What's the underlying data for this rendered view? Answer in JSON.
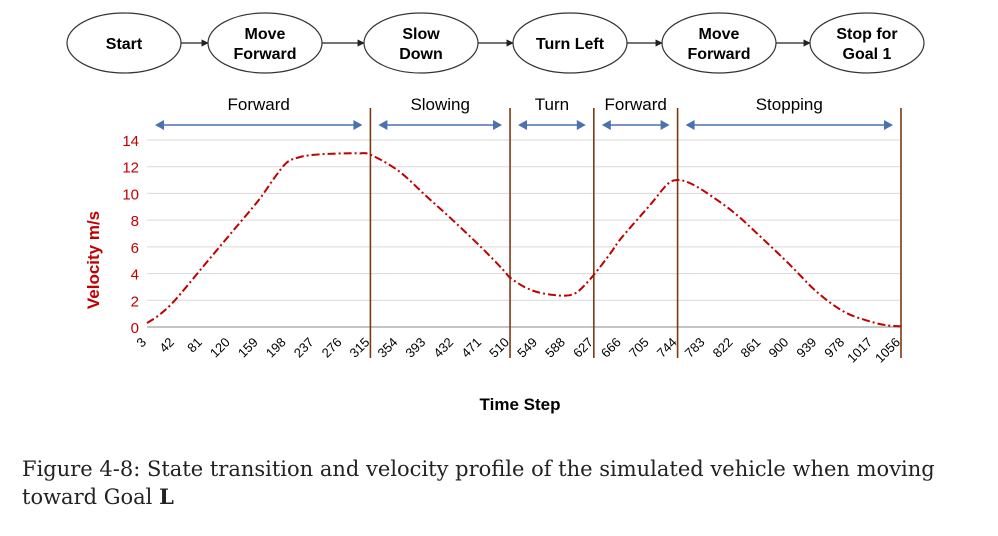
{
  "states": [
    "Start",
    "Move\nForward",
    "Slow\nDown",
    "Turn Left",
    "Move\nForward",
    "Stop for\nGoal 1"
  ],
  "phases": [
    {
      "label": "Forward",
      "start": 3,
      "end": 315
    },
    {
      "label": "Slowing",
      "start": 315,
      "end": 510
    },
    {
      "label": "Turn",
      "start": 510,
      "end": 627
    },
    {
      "label": "Forward",
      "start": 627,
      "end": 744
    },
    {
      "label": "Stopping",
      "start": 744,
      "end": 1056
    }
  ],
  "chart_data": {
    "type": "line",
    "xlabel": "Time Step",
    "ylabel": "Velocity m/s",
    "ylim": [
      0,
      14
    ],
    "yticks": [
      0,
      2,
      4,
      6,
      8,
      10,
      12,
      14
    ],
    "xlim": [
      3,
      1056
    ],
    "xticks": [
      3,
      42,
      81,
      120,
      159,
      198,
      237,
      276,
      315,
      354,
      393,
      432,
      471,
      510,
      549,
      588,
      627,
      666,
      705,
      744,
      783,
      822,
      861,
      900,
      939,
      978,
      1017,
      1056
    ],
    "boundaries": [
      315,
      510,
      627,
      744,
      1056
    ],
    "series": [
      {
        "name": "velocity",
        "x": [
          3,
          20,
          42,
          81,
          120,
          159,
          180,
          198,
          215,
          237,
          276,
          300,
          315,
          354,
          393,
          432,
          471,
          500,
          510,
          530,
          549,
          570,
          588,
          600,
          610,
          627,
          650,
          666,
          705,
          730,
          744,
          760,
          783,
          822,
          861,
          900,
          939,
          978,
          1017,
          1040,
          1056
        ],
        "y": [
          0.3,
          0.9,
          2.0,
          4.5,
          7.0,
          9.5,
          11.1,
          12.3,
          12.7,
          12.9,
          13.0,
          13.0,
          12.9,
          11.7,
          9.8,
          7.9,
          5.9,
          4.3,
          3.7,
          3.0,
          2.6,
          2.4,
          2.35,
          2.5,
          2.9,
          3.9,
          5.5,
          6.7,
          9.1,
          10.7,
          11.0,
          10.8,
          10.1,
          8.6,
          6.7,
          4.7,
          2.6,
          1.1,
          0.35,
          0.1,
          0.05
        ]
      }
    ]
  },
  "caption": {
    "prefix": "Figure 4-8: State transition and velocity profile of the simulated vehicle when moving toward Goal ",
    "bold": "L"
  }
}
